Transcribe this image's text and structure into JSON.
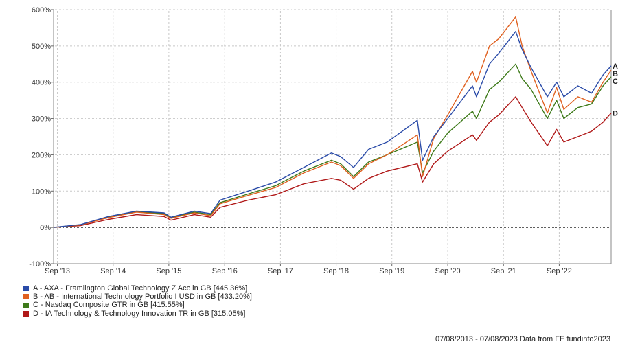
{
  "chart_data": {
    "type": "line",
    "y_ticks": [
      -100,
      0,
      100,
      200,
      300,
      400,
      500,
      600
    ],
    "y_tick_labels": [
      "-100%",
      "0%",
      "100%",
      "200%",
      "300%",
      "400%",
      "500%",
      "600%"
    ],
    "ylim": [
      -100,
      600
    ],
    "xlim": [
      "2013-08-07",
      "2023-08-07"
    ],
    "x_ticks": [
      "2013-09-01",
      "2014-09-01",
      "2015-09-01",
      "2016-09-01",
      "2017-09-01",
      "2018-09-01",
      "2019-09-01",
      "2020-09-01",
      "2021-09-01",
      "2022-09-01"
    ],
    "x_tick_labels": [
      "Sep '13",
      "Sep '14",
      "Sep '15",
      "Sep '16",
      "Sep '17",
      "Sep '18",
      "Sep '19",
      "Sep '20",
      "Sep '21",
      "Sep '22"
    ],
    "grid": true,
    "zero_line": true,
    "legend_placement": "bottom-left",
    "series": [
      {
        "code": "A",
        "name": "A - AXA - Framlington Global Technology Z Acc in GB [445.36%]",
        "color": "#2a4ba8",
        "x": [
          "2013-08-07",
          "2014-02-01",
          "2014-08-01",
          "2015-02-01",
          "2015-08-01",
          "2015-09-15",
          "2016-02-15",
          "2016-06-01",
          "2016-08-01",
          "2017-02-01",
          "2017-08-01",
          "2018-02-01",
          "2018-08-01",
          "2018-10-01",
          "2018-12-24",
          "2019-04-01",
          "2019-08-01",
          "2020-02-15",
          "2020-03-20",
          "2020-06-01",
          "2020-09-01",
          "2021-02-10",
          "2021-03-08",
          "2021-06-01",
          "2021-08-01",
          "2021-11-20",
          "2022-01-01",
          "2022-03-01",
          "2022-06-15",
          "2022-08-15",
          "2022-10-01",
          "2023-01-01",
          "2023-04-01",
          "2023-06-15",
          "2023-08-07"
        ],
        "y": [
          0,
          8,
          30,
          45,
          40,
          28,
          45,
          38,
          75,
          100,
          125,
          165,
          205,
          195,
          165,
          215,
          235,
          295,
          185,
          250,
          300,
          390,
          360,
          450,
          480,
          540,
          490,
          440,
          360,
          400,
          360,
          390,
          370,
          420,
          445
        ]
      },
      {
        "code": "B",
        "name": "B - AB - International Technology Portfolio I USD in GB [433.20%]",
        "color": "#e0601f",
        "x": [
          "2013-08-07",
          "2014-02-01",
          "2014-08-01",
          "2015-02-01",
          "2015-08-01",
          "2015-09-15",
          "2016-02-15",
          "2016-06-01",
          "2016-08-01",
          "2017-02-01",
          "2017-08-01",
          "2018-02-01",
          "2018-08-01",
          "2018-10-01",
          "2018-12-24",
          "2019-04-01",
          "2019-08-01",
          "2020-02-15",
          "2020-03-20",
          "2020-06-01",
          "2020-09-01",
          "2021-02-10",
          "2021-03-08",
          "2021-06-01",
          "2021-08-01",
          "2021-11-20",
          "2022-01-01",
          "2022-03-01",
          "2022-06-15",
          "2022-08-15",
          "2022-10-01",
          "2023-01-01",
          "2023-04-01",
          "2023-06-15",
          "2023-08-07"
        ],
        "y": [
          0,
          7,
          27,
          42,
          35,
          25,
          40,
          32,
          65,
          88,
          110,
          150,
          180,
          170,
          135,
          175,
          200,
          255,
          140,
          245,
          310,
          430,
          400,
          500,
          520,
          580,
          500,
          430,
          315,
          385,
          325,
          360,
          345,
          400,
          433
        ]
      },
      {
        "code": "C",
        "name": "C - Nasdaq Composite GTR in GB [415.55%]",
        "color": "#3e7a1a",
        "x": [
          "2013-08-07",
          "2014-02-01",
          "2014-08-01",
          "2015-02-01",
          "2015-08-01",
          "2015-09-15",
          "2016-02-15",
          "2016-06-01",
          "2016-08-01",
          "2017-02-01",
          "2017-08-01",
          "2018-02-01",
          "2018-08-01",
          "2018-10-01",
          "2018-12-24",
          "2019-04-01",
          "2019-08-01",
          "2020-02-15",
          "2020-03-20",
          "2020-06-01",
          "2020-09-01",
          "2021-02-10",
          "2021-03-08",
          "2021-06-01",
          "2021-08-01",
          "2021-11-20",
          "2022-01-01",
          "2022-03-01",
          "2022-06-15",
          "2022-08-15",
          "2022-10-01",
          "2023-01-01",
          "2023-04-01",
          "2023-06-15",
          "2023-08-07"
        ],
        "y": [
          0,
          7,
          28,
          43,
          38,
          27,
          42,
          35,
          68,
          92,
          115,
          155,
          185,
          175,
          140,
          180,
          200,
          235,
          150,
          210,
          260,
          320,
          300,
          380,
          400,
          450,
          410,
          380,
          300,
          350,
          300,
          330,
          340,
          390,
          415
        ]
      },
      {
        "code": "D",
        "name": "D - IA Technology & Technology Innovation TR in GB [315.05%]",
        "color": "#b01818",
        "x": [
          "2013-08-07",
          "2014-02-01",
          "2014-08-01",
          "2015-02-01",
          "2015-08-01",
          "2015-09-15",
          "2016-02-15",
          "2016-06-01",
          "2016-08-01",
          "2017-02-01",
          "2017-08-01",
          "2018-02-01",
          "2018-08-01",
          "2018-10-01",
          "2018-12-24",
          "2019-04-01",
          "2019-08-01",
          "2020-02-15",
          "2020-03-20",
          "2020-06-01",
          "2020-09-01",
          "2021-02-10",
          "2021-03-08",
          "2021-06-01",
          "2021-08-01",
          "2021-11-20",
          "2022-01-01",
          "2022-03-01",
          "2022-06-15",
          "2022-08-15",
          "2022-10-01",
          "2023-01-01",
          "2023-04-01",
          "2023-06-15",
          "2023-08-07"
        ],
        "y": [
          0,
          5,
          22,
          35,
          30,
          20,
          35,
          28,
          55,
          75,
          90,
          120,
          135,
          130,
          105,
          135,
          155,
          175,
          125,
          175,
          210,
          255,
          240,
          290,
          310,
          360,
          330,
          290,
          225,
          270,
          235,
          250,
          265,
          290,
          315
        ]
      }
    ],
    "footer": "07/08/2013 - 07/08/2023 Data from FE fundinfo2023"
  }
}
